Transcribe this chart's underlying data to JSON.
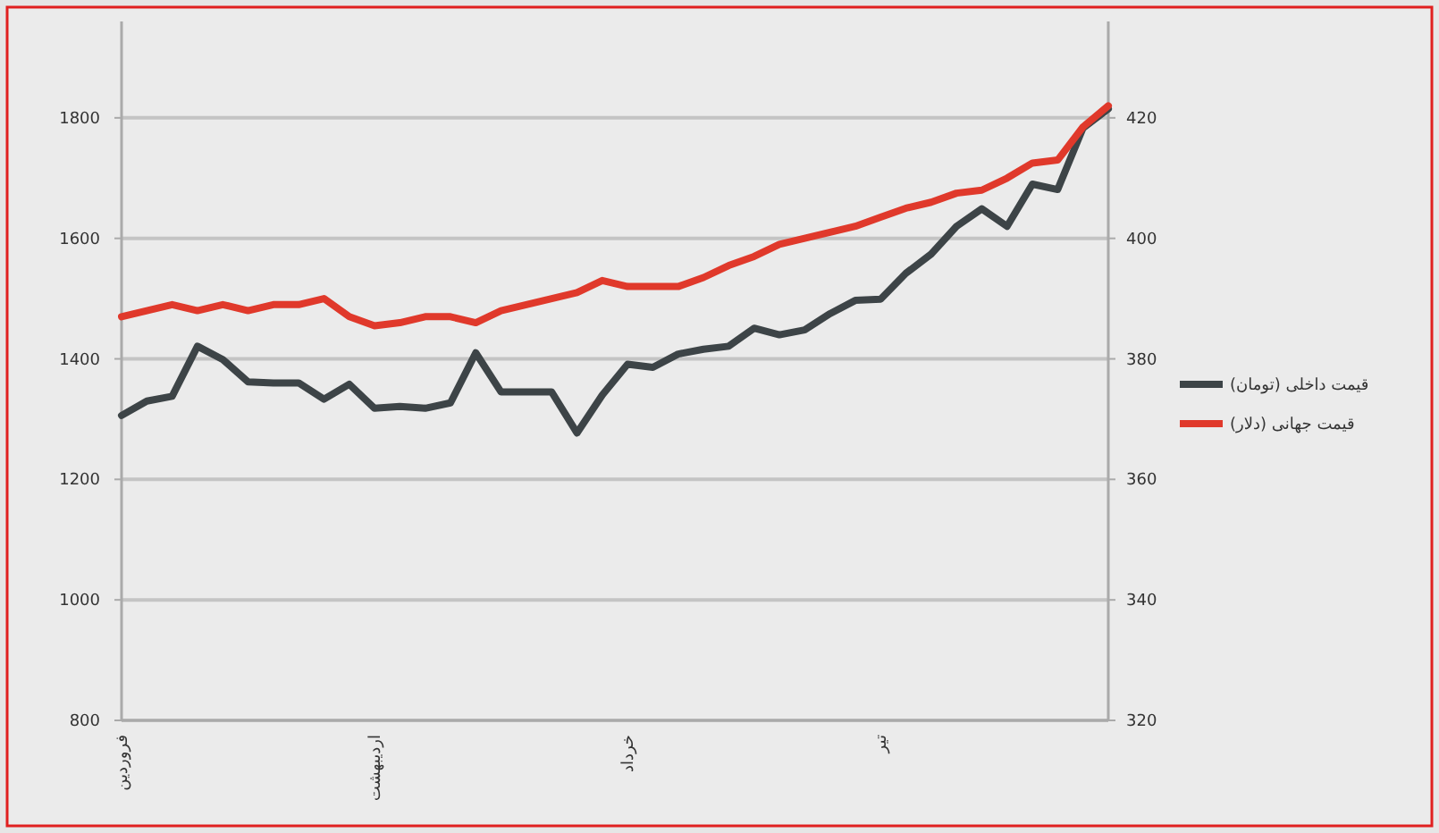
{
  "chart_data": {
    "type": "line",
    "categories": [
      "فروردین",
      null,
      null,
      null,
      null,
      null,
      null,
      null,
      null,
      null,
      "اردیبهشت",
      null,
      null,
      null,
      null,
      null,
      null,
      null,
      null,
      null,
      "خرداد",
      null,
      null,
      null,
      null,
      null,
      null,
      null,
      null,
      null,
      "تیر",
      null,
      null,
      null,
      null,
      null,
      null,
      null,
      null,
      null
    ],
    "series": [
      {
        "name": "قیمت داخلی (تومان)",
        "color": "#3d4447",
        "values": [
          1306,
          1330,
          1338,
          1421,
          1399,
          1362,
          1360,
          1360,
          1333,
          1358,
          1318,
          1321,
          1318,
          1327,
          1410,
          1345,
          1345,
          1345,
          1277,
          1340,
          1391,
          1386,
          1408,
          1416,
          1421,
          1451,
          1440,
          1448,
          1475,
          1497,
          1499,
          1542,
          1574,
          1620,
          1649,
          1620,
          1690,
          1681,
          1783,
          1815
        ]
      },
      {
        "name": "قیمت جهانی (دلار)",
        "color": "#e0392b",
        "axis": "y2",
        "values": [
          387,
          388,
          389,
          388,
          389,
          388,
          389,
          389,
          390,
          387,
          385.5,
          386,
          387,
          387,
          386,
          388,
          389,
          390,
          391,
          393,
          392,
          392,
          392,
          393.5,
          395.5,
          397,
          399,
          400,
          401,
          402,
          403.5,
          405,
          406,
          407.5,
          408,
          410,
          412.5,
          413,
          418.5,
          422
        ]
      }
    ],
    "ylim": [
      800,
      1960
    ],
    "yticks": [
      800,
      1000,
      1200,
      1400,
      1600,
      1800
    ],
    "y2lim": [
      320,
      436
    ],
    "y2ticks": [
      320,
      340,
      360,
      380,
      400,
      420
    ],
    "grid": "y",
    "legend": "right"
  }
}
